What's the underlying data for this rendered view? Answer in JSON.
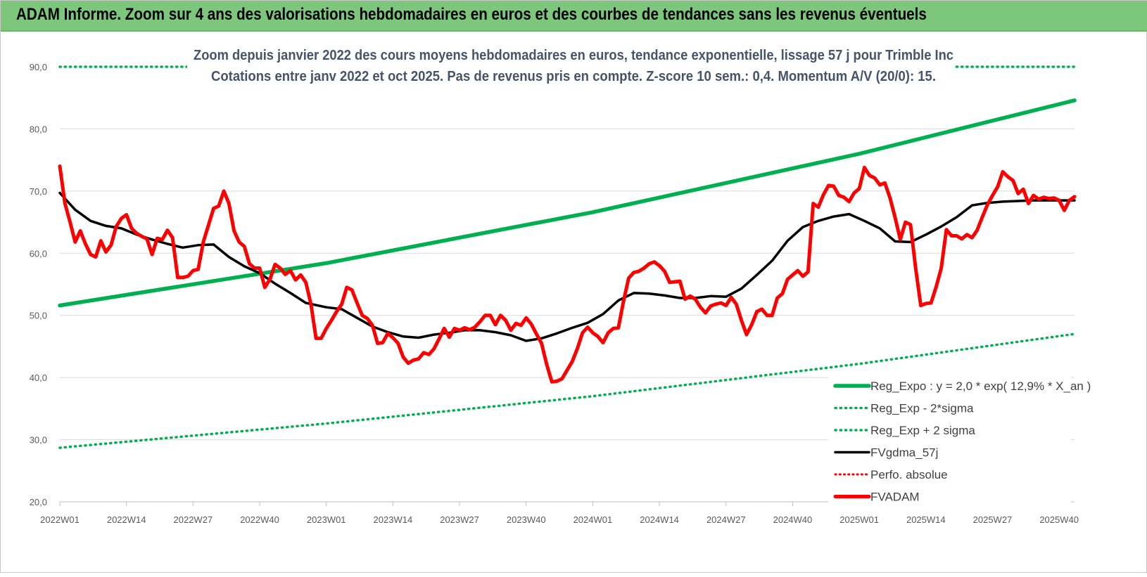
{
  "header": {
    "title": "ADAM Informe. Zoom sur 4 ans des valorisations hebdomadaires en euros et des courbes de tendances sans les revenus éventuels"
  },
  "colors": {
    "banner": "#7cc77c",
    "trend": "#00b050",
    "sigma": "#00b050",
    "smooth": "#000000",
    "perfo": "#ff0000",
    "price": "#ff0000",
    "grid": "#d9d9d9"
  },
  "chart_data": {
    "type": "line",
    "title": "Zoom depuis janvier 2022 des cours moyens hebdomadaires en euros, tendance exponentielle, lissage 57 j pour Trimble Inc",
    "subtitle": "Cotations entre janv 2022 et oct 2025. Pas de revenus pris en compte. Z-score 10 sem.: 0,4. Momentum A/V (20/0): 15.",
    "y_ticks": [
      "20,0",
      "30,0",
      "40,0",
      "50,0",
      "60,0",
      "70,0",
      "80,0",
      "90,0"
    ],
    "ylim": [
      20,
      90
    ],
    "grid": true,
    "legend_position": "bottom-right",
    "x_range": [
      "2022W01",
      "2025W43"
    ],
    "x_tick_labels": [
      "2022W01",
      "2022W14",
      "2022W27",
      "2022W40",
      "2023W01",
      "2023W14",
      "2023W27",
      "2023W40",
      "2024W01",
      "2024W14",
      "2024W27",
      "2024W40",
      "2025W01",
      "2025W14",
      "2025W27",
      "2025W40"
    ],
    "series": [
      {
        "name": "Reg_Expo : y = 2,0 * exp( 12,9% * X_an )",
        "style": "solid-thick",
        "x": [
          "2022W01",
          "2023W01",
          "2024W01",
          "2025W01",
          "2025W43"
        ],
        "values": [
          51.6,
          58.4,
          66.6,
          76.0,
          84.6
        ]
      },
      {
        "name": "Reg_Exp - 2*sigma",
        "style": "dotted",
        "x": [
          "2022W01",
          "2023W01",
          "2024W01",
          "2025W01",
          "2025W43"
        ],
        "values": [
          28.7,
          32.6,
          37.0,
          42.2,
          47.0
        ]
      },
      {
        "name": "Reg_Exp + 2 sigma",
        "style": "dotted",
        "note_clipped_above_90": true,
        "x": [
          "2022W01",
          "2025W43"
        ],
        "values": [
          90.0,
          90.0
        ]
      },
      {
        "name": "FVgdma_57j",
        "style": "solid",
        "x": [
          "2022W01",
          "2022W04",
          "2022W07",
          "2022W10",
          "2022W13",
          "2022W16",
          "2022W19",
          "2022W22",
          "2022W25",
          "2022W28",
          "2022W31",
          "2022W34",
          "2022W37",
          "2022W40",
          "2022W43",
          "2022W46",
          "2022W49",
          "2023W01",
          "2023W04",
          "2023W07",
          "2023W10",
          "2023W13",
          "2023W16",
          "2023W19",
          "2023W22",
          "2023W25",
          "2023W28",
          "2023W31",
          "2023W34",
          "2023W37",
          "2023W40",
          "2023W43",
          "2023W46",
          "2023W49",
          "2023W52",
          "2024W03",
          "2024W06",
          "2024W09",
          "2024W12",
          "2024W15",
          "2024W18",
          "2024W21",
          "2024W24",
          "2024W27",
          "2024W30",
          "2024W33",
          "2024W36",
          "2024W39",
          "2024W42",
          "2024W45",
          "2024W48",
          "2024W51",
          "2025W02",
          "2025W05",
          "2025W08",
          "2025W11",
          "2025W14",
          "2025W17",
          "2025W20",
          "2025W23",
          "2025W26",
          "2025W29",
          "2025W32",
          "2025W35",
          "2025W38",
          "2025W41",
          "2025W43"
        ],
        "values": [
          69.7,
          67.0,
          65.2,
          64.4,
          64.0,
          63.0,
          62.2,
          61.5,
          60.9,
          61.3,
          61.4,
          59.4,
          57.9,
          56.8,
          55.1,
          53.6,
          52.0,
          51.3,
          51.0,
          49.6,
          48.2,
          47.3,
          46.6,
          46.4,
          46.9,
          47.2,
          47.6,
          47.6,
          47.3,
          46.8,
          45.9,
          46.3,
          47.1,
          48.0,
          48.8,
          50.2,
          52.4,
          53.6,
          53.5,
          53.2,
          52.8,
          52.8,
          53.1,
          53.0,
          54.3,
          56.5,
          58.8,
          62.0,
          64.2,
          65.2,
          65.9,
          66.3,
          65.2,
          64.0,
          61.9,
          61.8,
          63.0,
          64.3,
          65.8,
          67.7,
          68.1,
          68.3,
          68.4,
          68.5,
          68.5,
          68.5,
          68.5
        ]
      },
      {
        "name": "Perfo. absolue",
        "style": "dotted",
        "x": [],
        "values": []
      },
      {
        "name": "FVADAM",
        "style": "solid-thick",
        "x": [
          "2022W01",
          "2022W02",
          "2022W03",
          "2022W04",
          "2022W05",
          "2022W06",
          "2022W07",
          "2022W08",
          "2022W09",
          "2022W10",
          "2022W11",
          "2022W12",
          "2022W13",
          "2022W14",
          "2022W15",
          "2022W16",
          "2022W17",
          "2022W18",
          "2022W19",
          "2022W20",
          "2022W21",
          "2022W22",
          "2022W23",
          "2022W24",
          "2022W25",
          "2022W26",
          "2022W27",
          "2022W28",
          "2022W29",
          "2022W30",
          "2022W31",
          "2022W32",
          "2022W33",
          "2022W34",
          "2022W35",
          "2022W36",
          "2022W37",
          "2022W38",
          "2022W39",
          "2022W40",
          "2022W41",
          "2022W42",
          "2022W43",
          "2022W44",
          "2022W45",
          "2022W46",
          "2022W47",
          "2022W48",
          "2022W49",
          "2022W50",
          "2022W51",
          "2022W52",
          "2023W01",
          "2023W02",
          "2023W03",
          "2023W04",
          "2023W05",
          "2023W06",
          "2023W07",
          "2023W08",
          "2023W09",
          "2023W10",
          "2023W11",
          "2023W12",
          "2023W13",
          "2023W14",
          "2023W15",
          "2023W16",
          "2023W17",
          "2023W18",
          "2023W19",
          "2023W20",
          "2023W21",
          "2023W22",
          "2023W23",
          "2023W24",
          "2023W25",
          "2023W26",
          "2023W27",
          "2023W28",
          "2023W29",
          "2023W30",
          "2023W31",
          "2023W32",
          "2023W33",
          "2023W34",
          "2023W35",
          "2023W36",
          "2023W37",
          "2023W38",
          "2023W39",
          "2023W40",
          "2023W41",
          "2023W42",
          "2023W43",
          "2023W44",
          "2023W45",
          "2023W46",
          "2023W47",
          "2023W48",
          "2023W49",
          "2023W50",
          "2023W51",
          "2023W52",
          "2024W01",
          "2024W02",
          "2024W03",
          "2024W04",
          "2024W05",
          "2024W06",
          "2024W07",
          "2024W08",
          "2024W09",
          "2024W10",
          "2024W11",
          "2024W12",
          "2024W13",
          "2024W14",
          "2024W15",
          "2024W16",
          "2024W17",
          "2024W18",
          "2024W19",
          "2024W20",
          "2024W21",
          "2024W22",
          "2024W23",
          "2024W24",
          "2024W25",
          "2024W26",
          "2024W27",
          "2024W28",
          "2024W29",
          "2024W30",
          "2024W31",
          "2024W32",
          "2024W33",
          "2024W34",
          "2024W35",
          "2024W36",
          "2024W37",
          "2024W38",
          "2024W39",
          "2024W40",
          "2024W41",
          "2024W42",
          "2024W43",
          "2024W44",
          "2024W45",
          "2024W46",
          "2024W47",
          "2024W48",
          "2024W49",
          "2024W50",
          "2024W51",
          "2024W52",
          "2025W01",
          "2025W02",
          "2025W03",
          "2025W04",
          "2025W05",
          "2025W06",
          "2025W07",
          "2025W08",
          "2025W09",
          "2025W10",
          "2025W11",
          "2025W12",
          "2025W13",
          "2025W14",
          "2025W15",
          "2025W16",
          "2025W17",
          "2025W18",
          "2025W19",
          "2025W20",
          "2025W21",
          "2025W22",
          "2025W23",
          "2025W24",
          "2025W25",
          "2025W26",
          "2025W27",
          "2025W28",
          "2025W29",
          "2025W30",
          "2025W31",
          "2025W32",
          "2025W33",
          "2025W34",
          "2025W35",
          "2025W36",
          "2025W37",
          "2025W38",
          "2025W39",
          "2025W40",
          "2025W41",
          "2025W42",
          "2025W43"
        ],
        "values": [
          74.0,
          68.0,
          65.0,
          61.8,
          63.6,
          61.5,
          59.8,
          59.4,
          62.0,
          60.2,
          61.3,
          64.3,
          65.6,
          66.2,
          64.0,
          63.2,
          62.7,
          62.3,
          59.8,
          62.4,
          62.2,
          63.7,
          62.5,
          56.1,
          56.1,
          56.3,
          57.2,
          57.4,
          61.8,
          64.5,
          67.2,
          67.6,
          70.0,
          68.0,
          63.6,
          61.8,
          61.1,
          58.3,
          57.6,
          57.6,
          54.5,
          55.8,
          58.2,
          57.6,
          56.6,
          57.2,
          55.7,
          56.5,
          55.3,
          51.8,
          46.3,
          46.3,
          47.9,
          49.2,
          50.6,
          51.8,
          54.5,
          54.1,
          52.0,
          50.0,
          49.5,
          48.4,
          45.5,
          45.6,
          47.1,
          46.4,
          45.5,
          43.3,
          42.3,
          42.8,
          43.0,
          44.0,
          43.7,
          44.6,
          46.2,
          47.9,
          46.5,
          47.9,
          47.6,
          48.0,
          47.7,
          48.1,
          49.0,
          50.0,
          50.0,
          48.5,
          50.0,
          49.2,
          47.6,
          48.7,
          48.4,
          49.6,
          48.6,
          47.0,
          45.5,
          42.1,
          39.3,
          39.4,
          39.8,
          41.2,
          42.6,
          44.7,
          47.2,
          48.1,
          47.2,
          46.6,
          45.6,
          47.2,
          47.9,
          48.0,
          52.3,
          56.0,
          56.9,
          57.1,
          57.6,
          58.3,
          58.6,
          58.0,
          57.1,
          55.3,
          55.4,
          55.5,
          52.6,
          53.1,
          52.6,
          51.3,
          50.4,
          51.5,
          51.8,
          52.0,
          51.6,
          52.9,
          51.8,
          49.2,
          46.9,
          48.5,
          50.6,
          51.0,
          50.0,
          50.0,
          52.8,
          53.5,
          55.8,
          56.5,
          57.2,
          56.3,
          57.0,
          68.0,
          67.4,
          69.4,
          70.9,
          70.8,
          69.3,
          69.0,
          68.3,
          69.7,
          70.4,
          73.8,
          72.5,
          72.1,
          71.0,
          71.3,
          68.9,
          65.7,
          62.2,
          65.0,
          64.6,
          57.6,
          51.6,
          51.9,
          52.0,
          54.6,
          57.6,
          63.8,
          62.8,
          62.8,
          62.3,
          63.0,
          62.5,
          63.7,
          65.8,
          67.8,
          69.3,
          70.7,
          73.1,
          72.3,
          71.7,
          69.6,
          70.3,
          68.0,
          69.3,
          68.7,
          69.0,
          68.8,
          68.9,
          68.5,
          66.9,
          68.5,
          69.1
        ]
      }
    ]
  }
}
